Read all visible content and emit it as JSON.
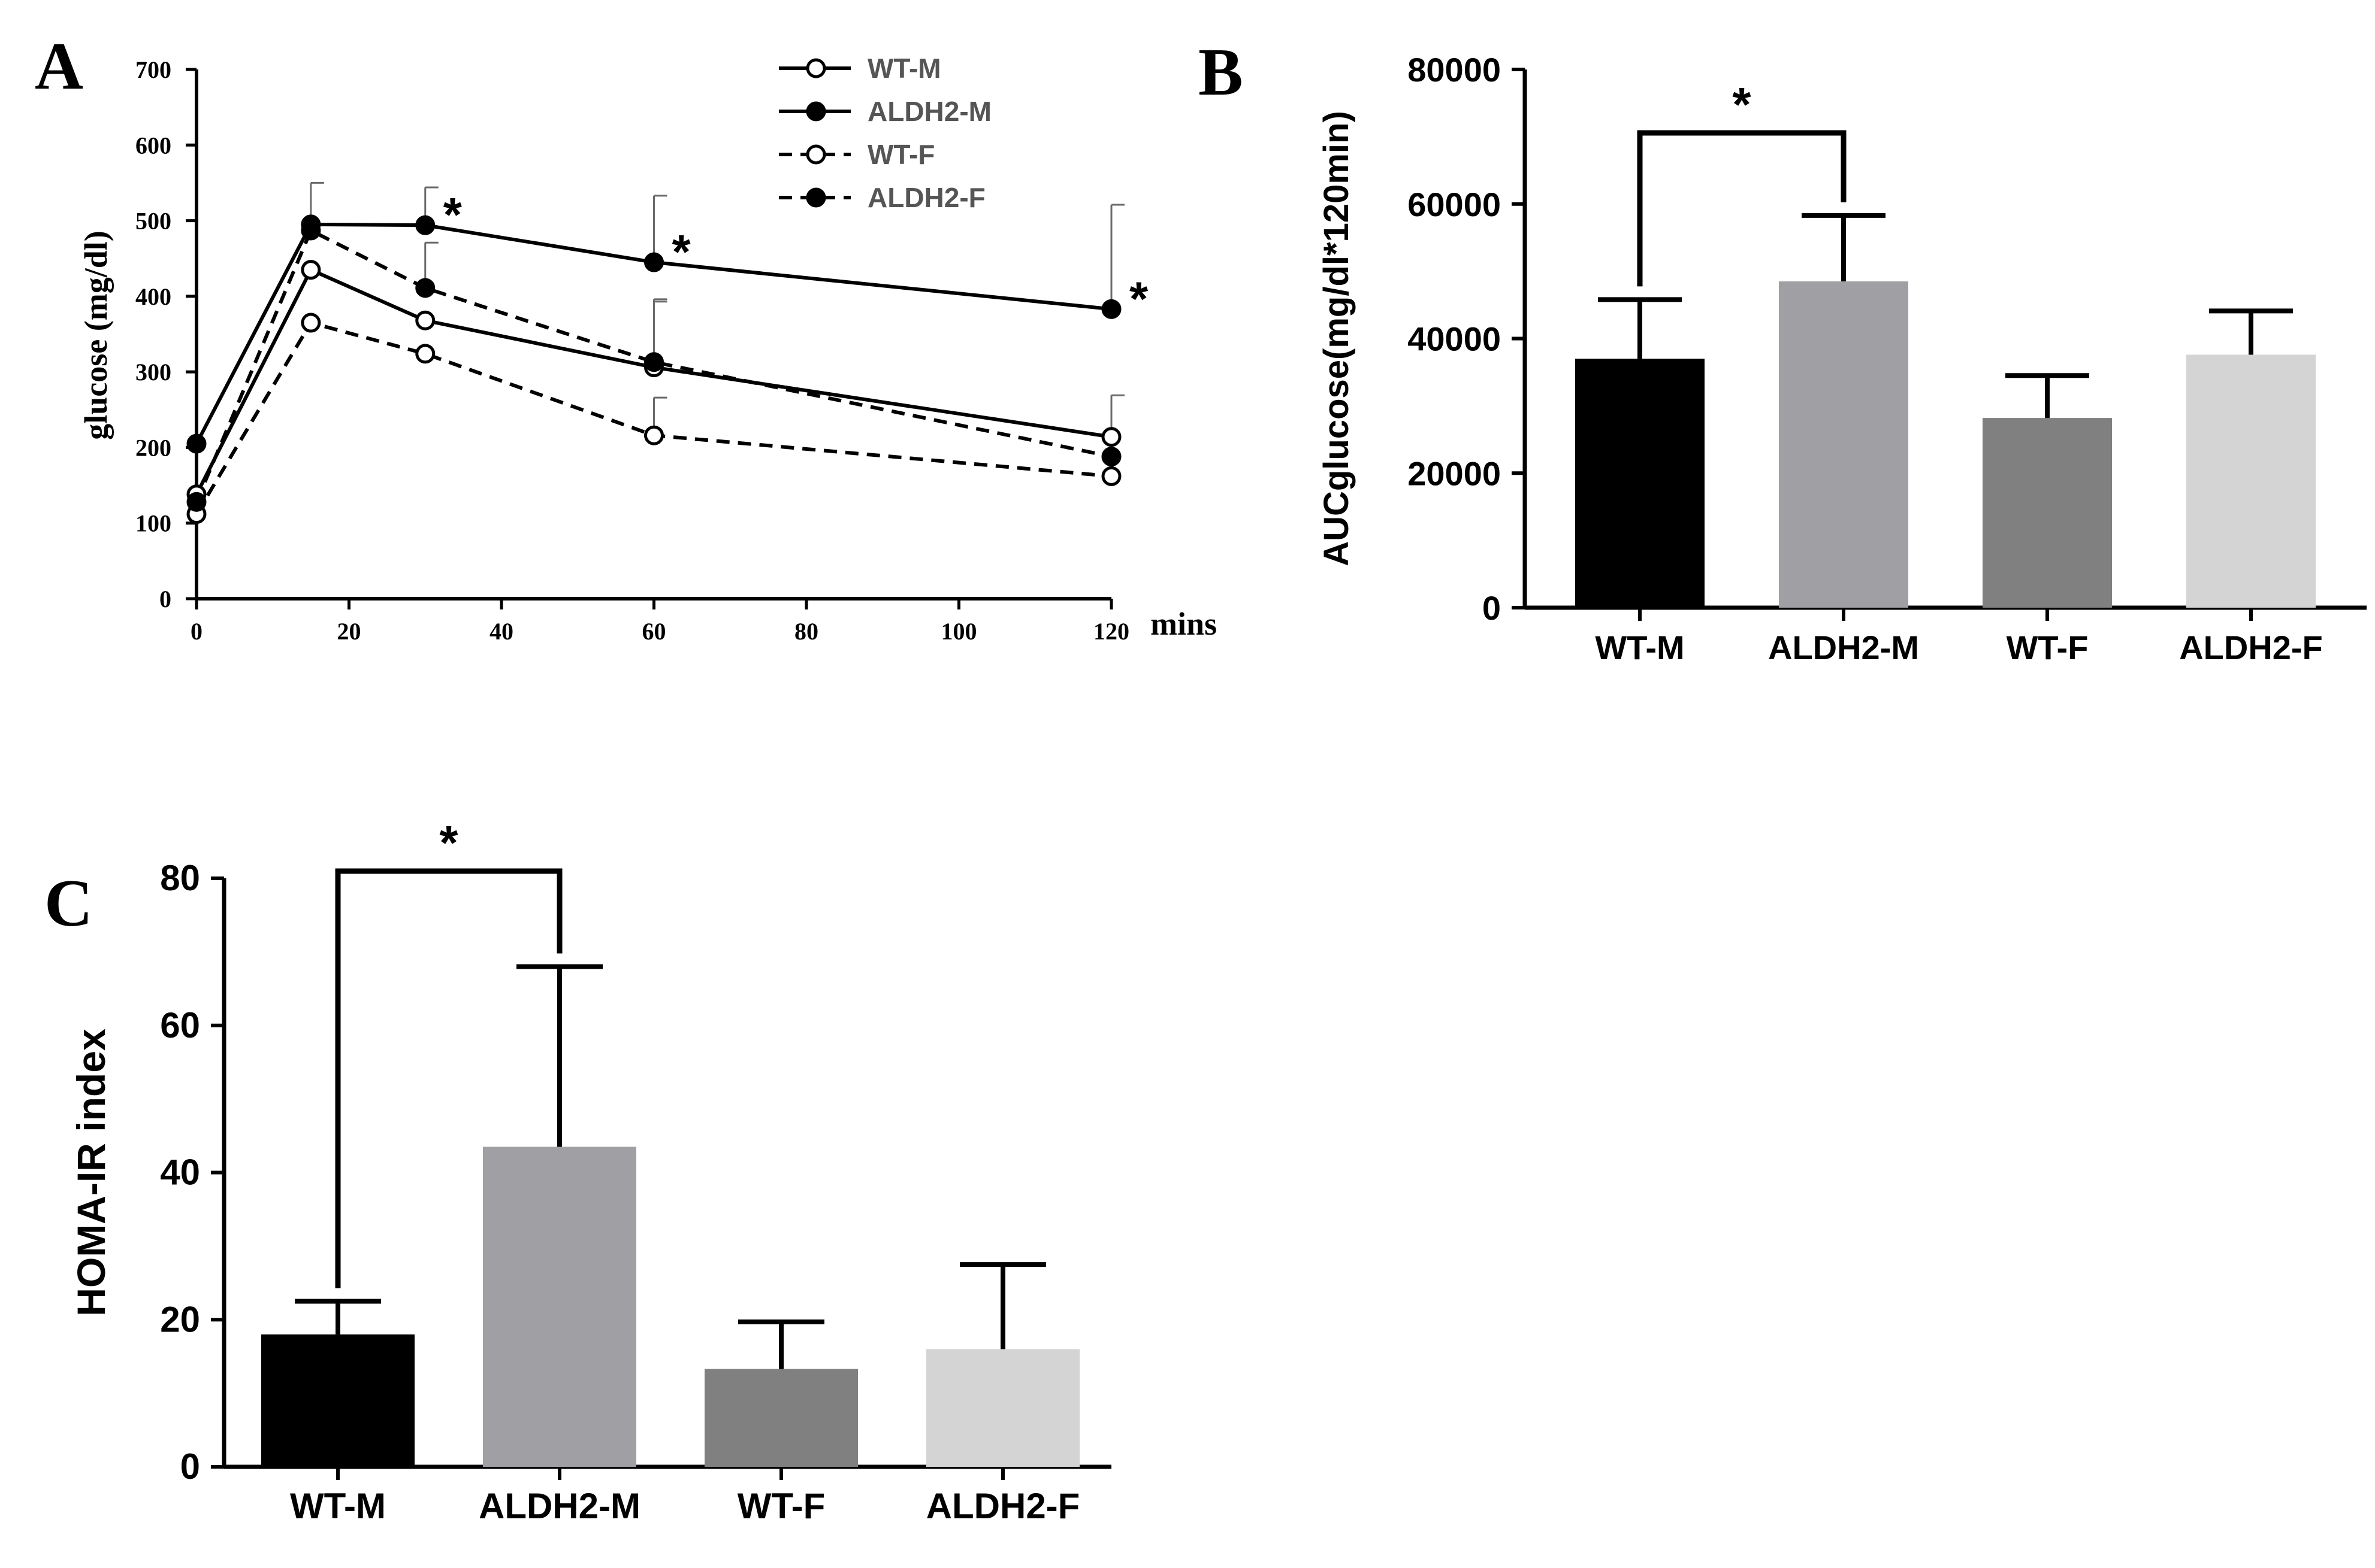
{
  "panel_labels": {
    "a": "A",
    "b": "B",
    "c": "C"
  },
  "significance_marker": "*",
  "colors": {
    "axis": "#000000",
    "wt_m": "#000000",
    "aldh2_m": "#a0a0a4",
    "wt_f": "#808080",
    "aldh2_f": "#d4d4d4",
    "legend_text": "#555555"
  },
  "chart_data": [
    {
      "id": "A",
      "type": "line",
      "title": "",
      "xlabel": "mins",
      "ylabel": "glucose (mg/dl)",
      "xlim": [
        0,
        120
      ],
      "ylim": [
        0,
        700
      ],
      "xticks": [
        0,
        20,
        40,
        60,
        80,
        100,
        120
      ],
      "yticks": [
        0,
        100,
        200,
        300,
        400,
        500,
        600,
        700
      ],
      "x": [
        0,
        15,
        30,
        60,
        120
      ],
      "series": [
        {
          "name": "WT-M",
          "line": "solid",
          "marker": "open",
          "values": [
            138,
            435,
            368,
            306,
            214
          ],
          "errors": [
            0,
            0,
            0,
            90,
            55
          ]
        },
        {
          "name": "ALDH2-M",
          "line": "solid",
          "marker": "filled",
          "values": [
            205,
            495,
            494,
            445,
            383
          ],
          "errors": [
            0,
            55,
            50,
            88,
            138
          ]
        },
        {
          "name": "WT-F",
          "line": "dashed",
          "marker": "open",
          "values": [
            112,
            365,
            324,
            216,
            162
          ],
          "errors": [
            0,
            0,
            0,
            50,
            0
          ]
        },
        {
          "name": "ALDH2-F",
          "line": "dashed",
          "marker": "filled",
          "values": [
            128,
            487,
            411,
            313,
            188
          ],
          "errors": [
            0,
            0,
            60,
            80,
            0
          ]
        }
      ],
      "significant_x": [
        30,
        60,
        120
      ],
      "legend_position": "top-right"
    },
    {
      "id": "B",
      "type": "bar",
      "title": "",
      "xlabel": "",
      "ylabel": "AUCglucose(mg/dl*120min)",
      "ylim": [
        0,
        80000
      ],
      "yticks": [
        0,
        20000,
        40000,
        60000,
        80000
      ],
      "categories": [
        "WT-M",
        "ALDH2-M",
        "WT-F",
        "ALDH2-F"
      ],
      "values": [
        37000,
        48500,
        28200,
        37600
      ],
      "errors": [
        8800,
        9800,
        6300,
        6500
      ],
      "significance": {
        "from": 0,
        "to": 1,
        "label": "*"
      }
    },
    {
      "id": "C",
      "type": "bar",
      "title": "",
      "xlabel": "",
      "ylabel": "HOMA-IR index",
      "ylim": [
        0,
        80
      ],
      "yticks": [
        0,
        20,
        40,
        60,
        80
      ],
      "categories": [
        "WT-M",
        "ALDH2-M",
        "WT-F",
        "ALDH2-F"
      ],
      "values": [
        18,
        43.5,
        13.3,
        16
      ],
      "errors": [
        4.5,
        24.5,
        6.4,
        11.5
      ],
      "significance": {
        "from": 0,
        "to": 1,
        "label": "*"
      }
    }
  ]
}
